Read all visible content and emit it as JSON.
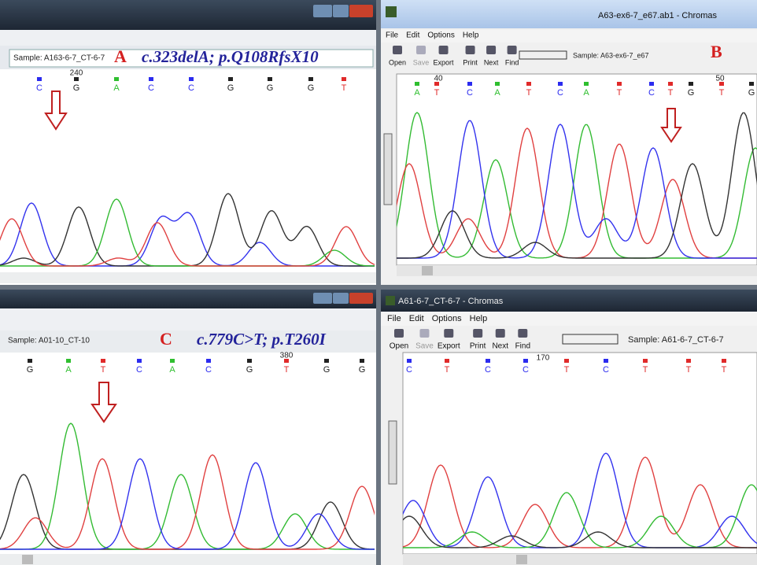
{
  "panels": [
    {
      "label": "A",
      "annotation": "c.323delA; p.Q108RfsX10",
      "sample": "Sample: A163-6-7_CT-6-7",
      "positions": [
        "240"
      ],
      "bases": [
        "C",
        "G",
        "A",
        "C",
        "C",
        "G",
        "G",
        "G",
        "T"
      ]
    },
    {
      "label": "B",
      "window_title": "A63-ex6-7_e67.ab1 - Chromas",
      "menu": [
        "File",
        "Edit",
        "Options",
        "Help"
      ],
      "toolbar": [
        "Open",
        "Save",
        "Export",
        "Print",
        "Next",
        "Find"
      ],
      "sample": "Sample: A63-ex6-7_e67",
      "positions": [
        "40",
        "50"
      ],
      "bases": [
        "A",
        "T",
        "C",
        "A",
        "T",
        "C",
        "A",
        "T",
        "C",
        "T",
        "G",
        "T",
        "G"
      ]
    },
    {
      "label": "C",
      "annotation": "c.779C>T; p.T260I",
      "sample": "Sample: A01-10_CT-10",
      "positions": [
        "380"
      ],
      "bases": [
        "G",
        "A",
        "T",
        "C",
        "A",
        "C",
        "G",
        "T",
        "G",
        "G"
      ]
    },
    {
      "window_title": "A61-6-7_CT-6-7 - Chromas",
      "menu": [
        "File",
        "Edit",
        "Options",
        "Help"
      ],
      "toolbar": [
        "Open",
        "Save",
        "Export",
        "Print",
        "Next",
        "Find"
      ],
      "sample": "Sample: A61-6-7_CT-6-7",
      "positions": [
        "170"
      ],
      "bases": [
        "C",
        "T",
        "C",
        "C",
        "T",
        "C",
        "T",
        "T",
        "T"
      ]
    }
  ]
}
